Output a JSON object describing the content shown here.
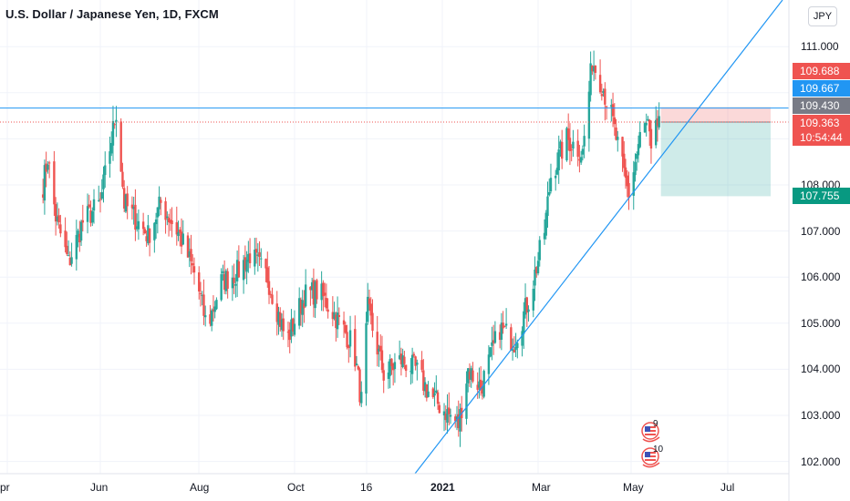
{
  "header": {
    "title": "U.S. Dollar / Japanese Yen, 1D, FXCM",
    "currency_button": "JPY"
  },
  "colors": {
    "up": "#26a69a",
    "down": "#ef5350",
    "trendline": "#2196f3",
    "stop_zone": "rgba(239,83,80,0.22)",
    "target_zone": "rgba(38,166,154,0.22)"
  },
  "price_labels": [
    {
      "value": "109.688",
      "color": "#ef5350"
    },
    {
      "value": "109.667",
      "color": "#2196f3"
    },
    {
      "value": "109.430",
      "color": "#787b86"
    },
    {
      "value": "109.363",
      "sub": "10:54:44",
      "color": "#ef5350"
    },
    {
      "value": "107.755",
      "color": "#089981"
    }
  ],
  "y_ticks": [
    "111.000",
    "108.000",
    "107.000",
    "106.000",
    "105.000",
    "104.000",
    "103.000",
    "102.000"
  ],
  "x_ticks": [
    {
      "label": "pr",
      "bold": false
    },
    {
      "label": "Jun",
      "bold": false
    },
    {
      "label": "Aug",
      "bold": false
    },
    {
      "label": "Oct",
      "bold": false
    },
    {
      "label": "16",
      "bold": false
    },
    {
      "label": "2021",
      "bold": true
    },
    {
      "label": "Mar",
      "bold": false
    },
    {
      "label": "May",
      "bold": false
    },
    {
      "label": "Jul",
      "bold": false
    }
  ],
  "events": [
    {
      "icon": "flag-us-icon",
      "count": "9"
    },
    {
      "icon": "flag-us-icon",
      "count": "10"
    }
  ],
  "chart_data": {
    "type": "candlestick",
    "symbol": "U.S. Dollar / Japanese Yen, 1D, FXCM",
    "ylim": [
      101.8,
      111.5
    ],
    "anchors": [
      [
        "2020-04-20",
        108.0
      ],
      [
        "2020-04-23",
        108.6
      ],
      [
        "2020-04-28",
        107.3
      ],
      [
        "2020-05-06",
        106.3
      ],
      [
        "2020-05-15",
        107.2
      ],
      [
        "2020-05-26",
        107.6
      ],
      [
        "2020-06-05",
        109.6
      ],
      [
        "2020-06-10",
        107.6
      ],
      [
        "2020-06-25",
        106.9
      ],
      [
        "2020-07-03",
        107.6
      ],
      [
        "2020-07-15",
        106.9
      ],
      [
        "2020-07-25",
        106.0
      ],
      [
        "2020-08-01",
        104.9
      ],
      [
        "2020-08-10",
        105.9
      ],
      [
        "2020-08-20",
        106.1
      ],
      [
        "2020-08-28",
        106.5
      ],
      [
        "2020-09-08",
        106.0
      ],
      [
        "2020-09-20",
        104.6
      ],
      [
        "2020-10-01",
        105.6
      ],
      [
        "2020-10-10",
        105.7
      ],
      [
        "2020-10-20",
        105.2
      ],
      [
        "2020-11-01",
        104.5
      ],
      [
        "2020-11-06",
        103.3
      ],
      [
        "2020-11-10",
        105.3
      ],
      [
        "2020-11-20",
        103.9
      ],
      [
        "2020-12-01",
        104.2
      ],
      [
        "2020-12-10",
        104.0
      ],
      [
        "2020-12-20",
        103.4
      ],
      [
        "2021-01-06",
        102.8
      ],
      [
        "2021-01-12",
        104.0
      ],
      [
        "2021-01-20",
        103.6
      ],
      [
        "2021-02-01",
        104.9
      ],
      [
        "2021-02-10",
        104.6
      ],
      [
        "2021-02-20",
        105.6
      ],
      [
        "2021-03-01",
        107.0
      ],
      [
        "2021-03-05",
        108.2
      ],
      [
        "2021-03-15",
        109.0
      ],
      [
        "2021-03-25",
        108.7
      ],
      [
        "2021-03-31",
        110.7
      ],
      [
        "2021-04-06",
        110.2
      ],
      [
        "2021-04-12",
        109.5
      ],
      [
        "2021-04-20",
        108.2
      ],
      [
        "2021-04-23",
        107.8
      ],
      [
        "2021-05-01",
        109.2
      ],
      [
        "2021-05-05",
        109.3
      ],
      [
        "2021-05-07",
        108.6
      ],
      [
        "2021-05-12",
        109.5
      ]
    ],
    "horizontal_line": 109.667,
    "last_price": 109.363,
    "position": {
      "entry": 109.363,
      "stop": 109.688,
      "target": 107.755
    }
  }
}
